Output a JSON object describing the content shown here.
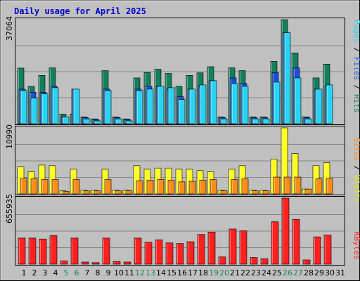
{
  "chart_data": {
    "type": "bar",
    "title": "Daily usage for April 2025",
    "days": [
      "1",
      "2",
      "3",
      "4",
      "5",
      "6",
      "7",
      "8",
      "9",
      "10",
      "11",
      "12",
      "13",
      "14",
      "15",
      "16",
      "17",
      "18",
      "19",
      "20",
      "21",
      "22",
      "23",
      "24",
      "25",
      "26",
      "27",
      "28",
      "29",
      "30",
      "31"
    ],
    "weekend_days": [
      "5",
      "6",
      "12",
      "13",
      "19",
      "20",
      "26",
      "27"
    ],
    "colors": {
      "hits": "#137f5c",
      "files": "#1a4fd6",
      "pages": "#27d4f5",
      "visits": "#ffff20",
      "sites": "#ff8c16",
      "kbytes": "#ff2020",
      "weekday_label": "#000000",
      "weekend_label": "#1a8a4a",
      "title": "#0000cc"
    },
    "panel_top": {
      "max": 37064,
      "max_label": "37064",
      "series": [
        {
          "name": "Hits",
          "values": [
            19800,
            13300,
            17200,
            19900,
            3400,
            3400,
            2400,
            1700,
            18900,
            2400,
            1700,
            16300,
            18200,
            19400,
            17900,
            13300,
            17200,
            18100,
            20300,
            2400,
            19900,
            18900,
            2400,
            2400,
            22200,
            37064,
            25200,
            2400,
            16300,
            21200,
            0
          ]
        },
        {
          "name": "Files",
          "values": [
            12300,
            11200,
            11200,
            13300,
            2400,
            12300,
            2100,
            1400,
            12300,
            2100,
            1400,
            12300,
            13300,
            13300,
            12300,
            9600,
            12300,
            13300,
            15300,
            2100,
            16300,
            14300,
            2100,
            2100,
            18200,
            32400,
            19900,
            2100,
            12300,
            13300,
            0
          ]
        },
        {
          "name": "Pages",
          "values": [
            11800,
            9100,
            10600,
            12800,
            2400,
            12300,
            1700,
            1000,
            11800,
            1700,
            1000,
            11800,
            12300,
            13300,
            12800,
            8600,
            12300,
            13800,
            15300,
            1700,
            14300,
            13300,
            1700,
            1700,
            14800,
            32400,
            16300,
            1700,
            12300,
            13800,
            0
          ]
        }
      ],
      "side_labels": [
        "Pages",
        "Files",
        "Hits"
      ]
    },
    "panel_middle": {
      "max": 10990,
      "max_label": "10990",
      "series": [
        {
          "name": "Visits",
          "values": [
            4500,
            3700,
            4800,
            4700,
            500,
            4100,
            600,
            600,
            4100,
            600,
            600,
            4700,
            4100,
            4300,
            4300,
            4100,
            4100,
            3900,
            3700,
            600,
            4100,
            4700,
            600,
            600,
            5800,
            10990,
            6700,
            800,
            4700,
            5200,
            0
          ]
        },
        {
          "name": "Sites",
          "values": [
            2600,
            2500,
            2400,
            2400,
            400,
            2400,
            500,
            500,
            2400,
            500,
            500,
            2200,
            2300,
            2400,
            2300,
            2000,
            2100,
            2300,
            2400,
            500,
            2400,
            2500,
            500,
            500,
            2800,
            2800,
            2800,
            800,
            2500,
            2600,
            0
          ]
        }
      ],
      "side_labels": [
        "Sites",
        "Visits"
      ]
    },
    "panel_bottom": {
      "max": 655935,
      "max_label": "655935",
      "series": [
        {
          "name": "KBytes",
          "values": [
            259000,
            259000,
            250000,
            283000,
            33000,
            259000,
            21000,
            15000,
            259000,
            27000,
            21000,
            259000,
            217000,
            241000,
            211000,
            205000,
            223000,
            295000,
            319000,
            72000,
            349000,
            331000,
            66000,
            54000,
            421000,
            655935,
            445000,
            42000,
            271000,
            289000,
            0
          ]
        }
      ],
      "side_labels": [
        "KBytes"
      ]
    }
  }
}
